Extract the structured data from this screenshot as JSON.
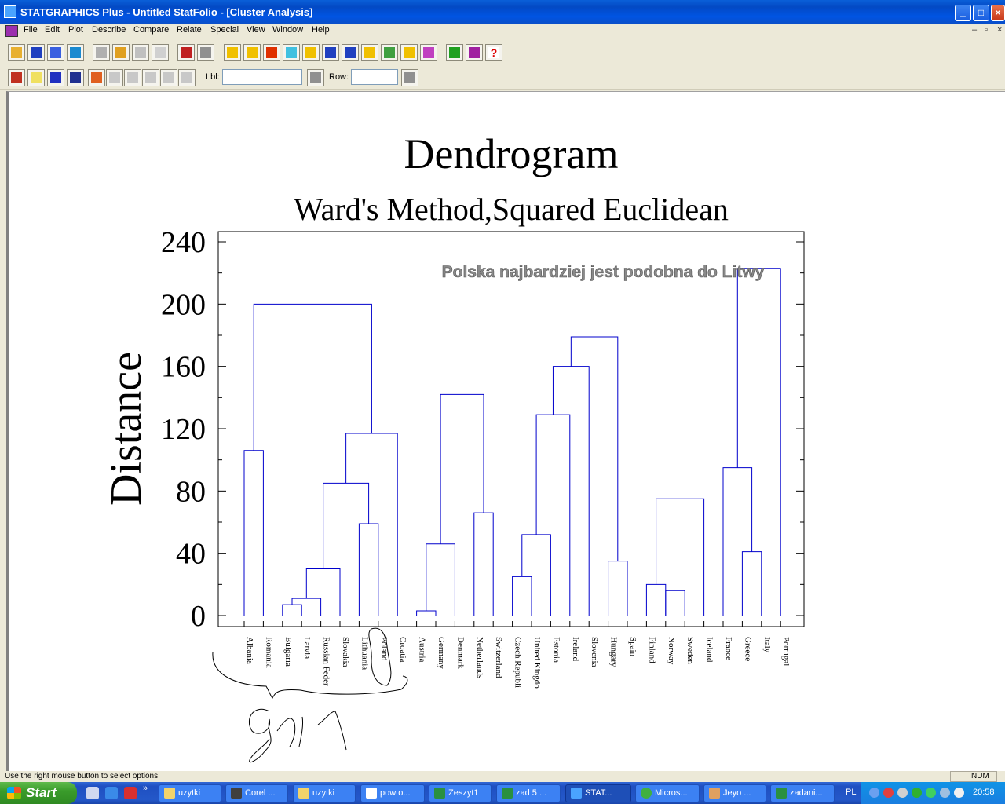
{
  "window": {
    "title": "STATGRAPHICS Plus - Untitled StatFolio - [Cluster Analysis]"
  },
  "menu": [
    "File",
    "Edit",
    "Plot",
    "Describe",
    "Compare",
    "Relate",
    "Special",
    "View",
    "Window",
    "Help"
  ],
  "toolbar2": {
    "lbl_label": "Lbl:",
    "lbl_value": "",
    "row_label": "Row:",
    "row_value": ""
  },
  "chart_data": {
    "type": "dendrogram",
    "title": "Dendrogram",
    "subtitle": "Ward's Method,Squared Euclidean",
    "ylabel": "Distance",
    "ylim": [
      0,
      240
    ],
    "yticks": [
      0,
      40,
      80,
      120,
      160,
      200,
      240
    ],
    "annotation": "Polska najbardziej jest podobna do Litwy",
    "leaves": [
      "Albania",
      "Romania",
      "Bulgaria",
      "Latvia",
      "Russian Feder",
      "Slovakia",
      "Lithuania",
      "Poland",
      "Croatia",
      "Austria",
      "Germany",
      "Denmark",
      "Netherlands",
      "Switzerland",
      "Czech Republi",
      "United Kingdo",
      "Estonia",
      "Ireland",
      "Slovenia",
      "Hungary",
      "Spain",
      "Finland",
      "Norway",
      "Sweden",
      "Iceland",
      "France",
      "Greece",
      "Italy",
      "Portugal"
    ],
    "merges": [
      {
        "a": "L:Albania",
        "b": "L:Romania",
        "h": 106,
        "id": "m1"
      },
      {
        "a": "L:Bulgaria",
        "b": "L:Latvia",
        "h": 7,
        "id": "m2"
      },
      {
        "a": "m2",
        "b": "L:Russian Feder",
        "h": 11,
        "id": "m3"
      },
      {
        "a": "m3",
        "b": "L:Slovakia",
        "h": 30,
        "id": "m4"
      },
      {
        "a": "L:Lithuania",
        "b": "L:Poland",
        "h": 59,
        "id": "m5"
      },
      {
        "a": "m4",
        "b": "m5",
        "h": 85,
        "id": "m6"
      },
      {
        "a": "m6",
        "b": "L:Croatia",
        "h": 117,
        "id": "m7"
      },
      {
        "a": "m1",
        "b": "m7",
        "h": 200,
        "id": "m8"
      },
      {
        "a": "L:Austria",
        "b": "L:Germany",
        "h": 3,
        "id": "m9"
      },
      {
        "a": "m9",
        "b": "L:Denmark",
        "h": 46,
        "id": "m10"
      },
      {
        "a": "L:Netherlands",
        "b": "L:Switzerland",
        "h": 66,
        "id": "m11"
      },
      {
        "a": "m10",
        "b": "m11",
        "h": 142,
        "id": "m12"
      },
      {
        "a": "L:Czech Republi",
        "b": "L:United Kingdo",
        "h": 25,
        "id": "m13"
      },
      {
        "a": "m13",
        "b": "L:Estonia",
        "h": 52,
        "id": "m14"
      },
      {
        "a": "m14",
        "b": "L:Ireland",
        "h": 129,
        "id": "m15"
      },
      {
        "a": "m15",
        "b": "L:Slovenia",
        "h": 160,
        "id": "m16"
      },
      {
        "a": "L:Hungary",
        "b": "L:Spain",
        "h": 35,
        "id": "m17"
      },
      {
        "a": "m16",
        "b": "m17",
        "h": 179,
        "id": "m18"
      },
      {
        "a": "L:Finland",
        "b": "L:Norway",
        "h": 20,
        "id": "m19"
      },
      {
        "a": "L:Norway",
        "b": "L:Sweden",
        "h": 16,
        "id": "m20"
      },
      {
        "a": "m19",
        "b": "L:Iceland",
        "h": 75,
        "id": "m21"
      },
      {
        "a": "L:Greece",
        "b": "L:Italy",
        "h": 41,
        "id": "m22"
      },
      {
        "a": "L:France",
        "b": "m22",
        "h": 95,
        "id": "m23"
      },
      {
        "a": "m23",
        "b": "L:Portugal",
        "h": 223,
        "id": "m24"
      }
    ],
    "grid": false
  },
  "status": {
    "message": "Use the right mouse button to select options",
    "indicator": "NUM"
  },
  "taskbar": {
    "start": "Start",
    "tasks": [
      "uzytki",
      "Corel ...",
      "uzytki",
      "powto...",
      "Zeszyt1",
      "zad 5 ...",
      "STAT...",
      "Micros...",
      "Jeyo ...",
      "zadani..."
    ],
    "lang": "PL",
    "clock": "20:58"
  },
  "colors": {
    "tree": "#0000cc",
    "annotation": "#808080"
  }
}
